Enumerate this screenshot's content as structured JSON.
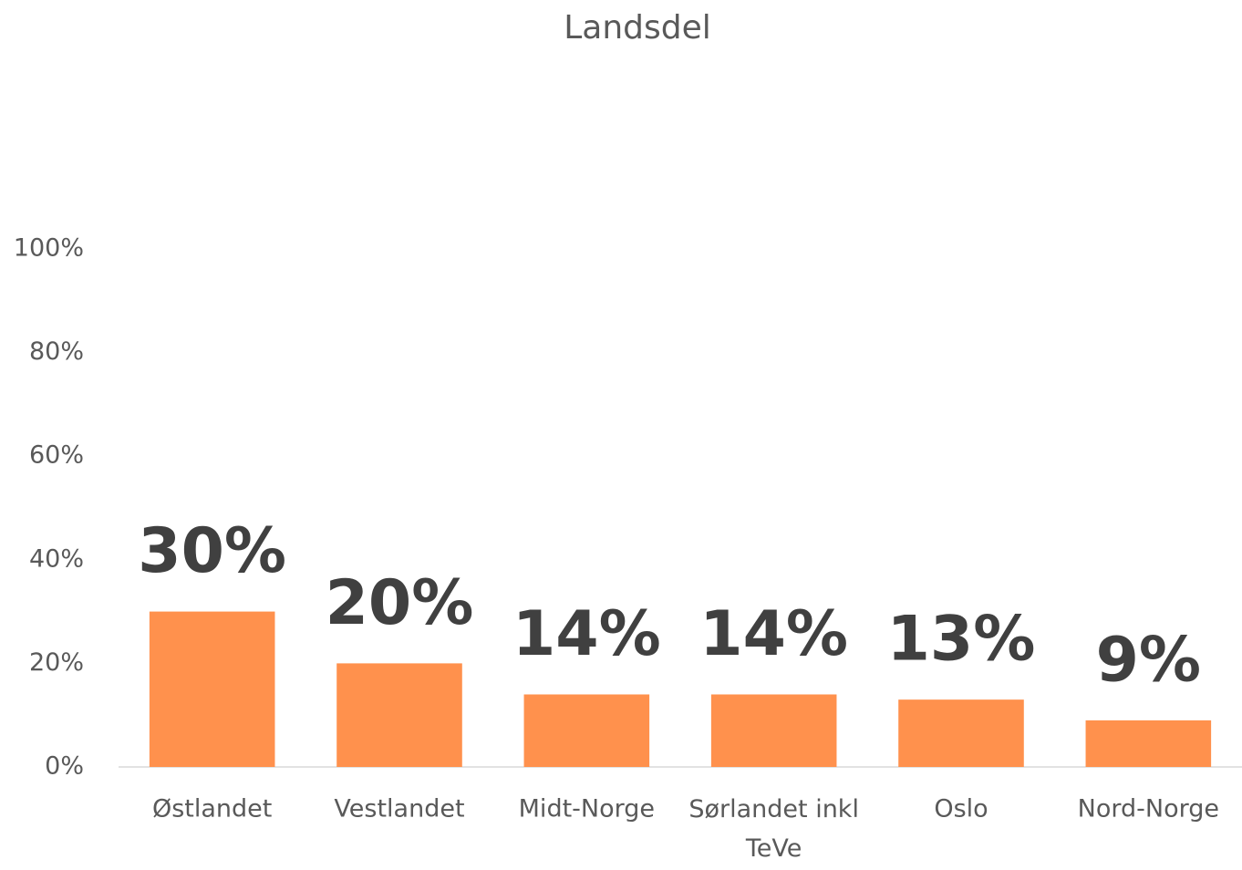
{
  "chart_data": {
    "type": "bar",
    "title": "Landsdel",
    "categories": [
      "Østlandet",
      "Vestlandet",
      "Midt-Norge",
      "Sørlandet inkl TeVe",
      "Oslo",
      "Nord-Norge"
    ],
    "values": [
      30,
      20,
      14,
      14,
      13,
      9
    ],
    "value_labels": [
      "30%",
      "20%",
      "14%",
      "14%",
      "13%",
      "9%"
    ],
    "color": "#ff914d",
    "ylim": [
      0,
      100
    ],
    "yticks": [
      {
        "value": 0,
        "label": "0%"
      },
      {
        "value": 20,
        "label": "20%"
      },
      {
        "value": 40,
        "label": "40%"
      },
      {
        "value": 60,
        "label": "60%"
      },
      {
        "value": 80,
        "label": "80%"
      },
      {
        "value": 100,
        "label": "100%"
      }
    ],
    "grid": false
  }
}
